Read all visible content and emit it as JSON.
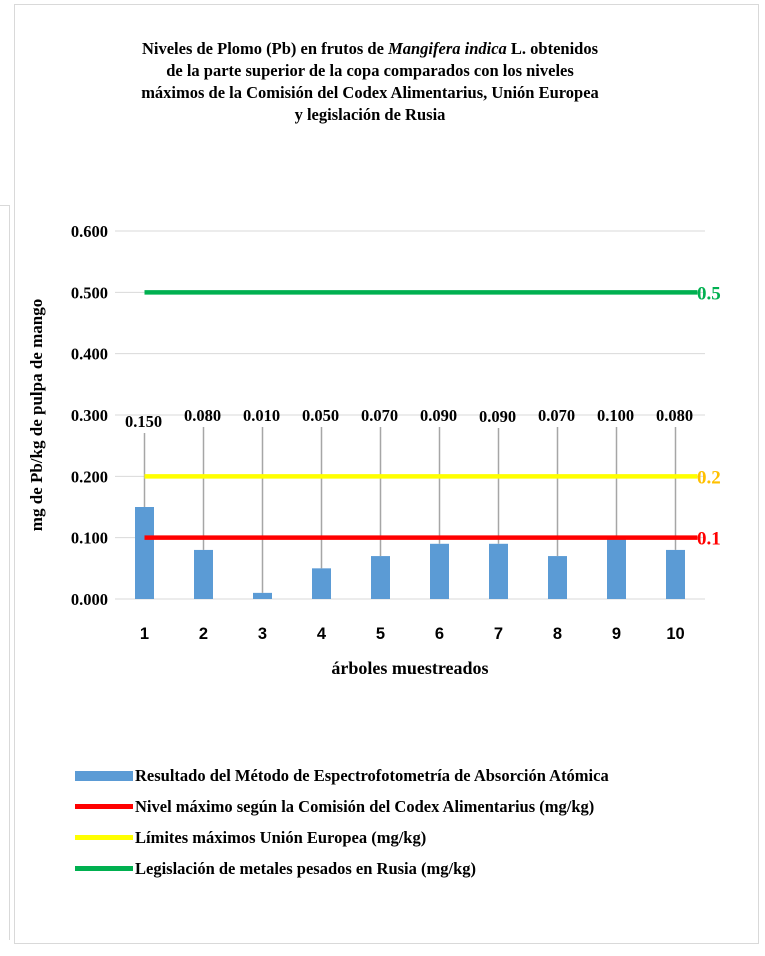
{
  "title": {
    "line1_a": "Niveles de Plomo (Pb) en frutos de ",
    "line1_species": "Mangifera indica",
    "line1_b": " L. obtenidos",
    "line2": "de la parte superior de la copa comparados con los niveles",
    "line3": "máximos de la Comisión del Codex Alimentarius, Unión Europea",
    "line4": "y legislación de Rusia"
  },
  "chart_data": {
    "type": "bar",
    "xlabel": "árboles muestreados",
    "ylabel": "mg de Pb/kg de pulpa de mango",
    "ylim": [
      0,
      0.6
    ],
    "yticks": [
      "0.000",
      "0.100",
      "0.200",
      "0.300",
      "0.400",
      "0.500",
      "0.600"
    ],
    "categories": [
      "1",
      "2",
      "3",
      "4",
      "5",
      "6",
      "7",
      "8",
      "9",
      "10"
    ],
    "series": [
      {
        "name": "Resultado del Método de Espectrofotometría de Absorción Atómica",
        "values": [
          0.15,
          0.08,
          0.01,
          0.05,
          0.07,
          0.09,
          0.09,
          0.07,
          0.1,
          0.08
        ],
        "labels": [
          "0.150",
          "0.080",
          "0.010",
          "0.050",
          "0.070",
          "0.090",
          "0.090",
          "0.070",
          "0.100",
          "0.080"
        ],
        "color": "#5b9bd5"
      },
      {
        "name": "Nivel máximo según la Comisión del Codex Alimentarius (mg/kg)",
        "value": 0.1,
        "label": "0.1",
        "color": "#ff0000"
      },
      {
        "name": "Límites máximos Unión Europea (mg/kg)",
        "value": 0.2,
        "label": "0.2",
        "color": "#ffff00",
        "label_color": "#ffc000"
      },
      {
        "name": "Legislación de metales pesados en Rusia (mg/kg)",
        "value": 0.5,
        "label": "0.5",
        "color": "#00b050"
      }
    ],
    "grid": true,
    "legend_position": "bottom"
  }
}
